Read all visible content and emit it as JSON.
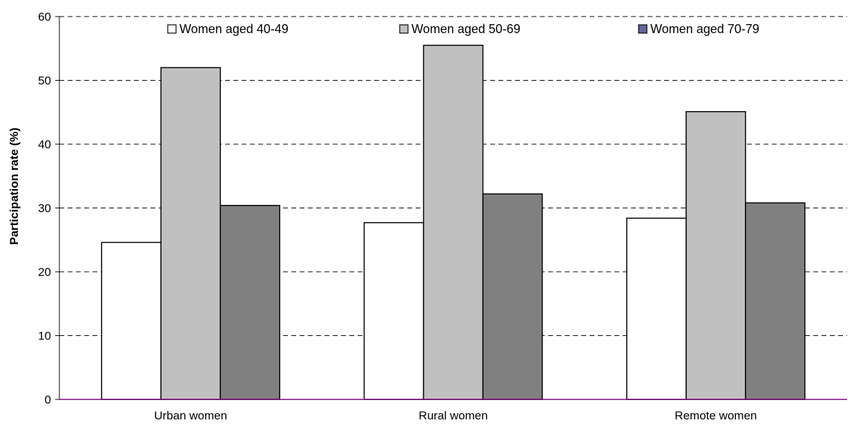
{
  "chart_data": {
    "type": "bar",
    "title": "",
    "xlabel": "",
    "ylabel": "Participation rate (%)",
    "categories": [
      "Urban women",
      "Rural women",
      "Remote women"
    ],
    "series": [
      {
        "name": "Women aged 40-49",
        "values": [
          24.6,
          27.7,
          28.4
        ],
        "color": "#ffffff"
      },
      {
        "name": "Women aged 50-69",
        "values": [
          52.0,
          55.5,
          45.1
        ],
        "color": "#c0c0c0"
      },
      {
        "name": "Women aged 70-79",
        "values": [
          30.4,
          32.2,
          30.8
        ],
        "color": "#808080"
      }
    ],
    "legend_swatch_colors": [
      "#ffffff",
      "#c0c0c0",
      "#666699"
    ],
    "ylim": [
      0,
      60
    ],
    "yticks": [
      0,
      10,
      20,
      30,
      40,
      50,
      60
    ],
    "grid": "horizontal-dashed",
    "legend_position": "top",
    "baseline_color": "#800080"
  }
}
